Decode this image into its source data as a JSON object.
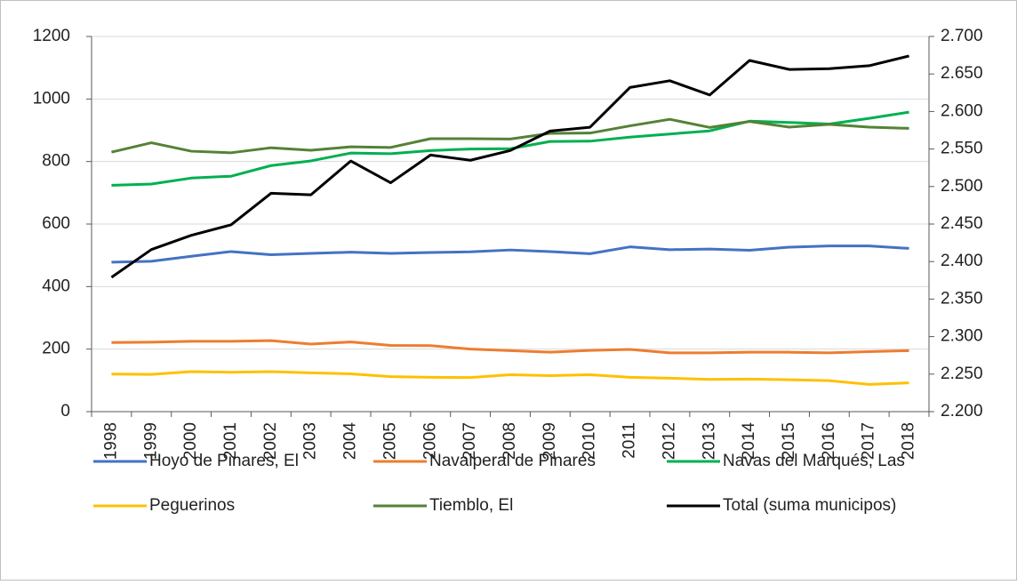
{
  "chart_data": {
    "type": "line",
    "categories": [
      "1998",
      "1999",
      "2000",
      "2001",
      "2002",
      "2003",
      "2004",
      "2005",
      "2006",
      "2007",
      "2008",
      "2009",
      "2010",
      "2011",
      "2012",
      "2013",
      "2014",
      "2015",
      "2016",
      "2017",
      "2018"
    ],
    "series": [
      {
        "name": "Hoyo de Pinares, El",
        "color": "#4472c4",
        "values": [
          478,
          481,
          497,
          512,
          502,
          506,
          510,
          506,
          509,
          511,
          517,
          512,
          505,
          527,
          518,
          520,
          516,
          526,
          530,
          530,
          522
        ]
      },
      {
        "name": "Navalperal de Pinares",
        "color": "#ed7d31",
        "values": [
          221,
          222,
          225,
          225,
          227,
          216,
          223,
          212,
          211,
          200,
          195,
          190,
          196,
          199,
          188,
          188,
          190,
          190,
          188,
          192,
          195
        ]
      },
      {
        "name": "Navas del Marqués, Las",
        "color": "#00b050",
        "values": [
          724,
          728,
          747,
          753,
          787,
          802,
          827,
          825,
          835,
          840,
          841,
          864,
          865,
          878,
          888,
          898,
          929,
          925,
          920,
          938,
          958
        ]
      },
      {
        "name": "Peguerinos",
        "color": "#ffc000",
        "values": [
          120,
          119,
          128,
          126,
          128,
          124,
          121,
          112,
          110,
          109,
          118,
          115,
          118,
          110,
          107,
          103,
          104,
          102,
          99,
          87,
          92
        ]
      },
      {
        "name": "Tiemblo, El",
        "color": "#548235",
        "values": [
          830,
          860,
          833,
          828,
          844,
          836,
          847,
          845,
          873,
          873,
          872,
          890,
          891,
          914,
          935,
          909,
          928,
          910,
          919,
          910,
          906
        ]
      },
      {
        "name": "Total (suma municipos)",
        "color": "#000000",
        "axis": "y2",
        "values": [
          2.379,
          2.416,
          2.435,
          2.449,
          2.491,
          2.489,
          2.534,
          2.505,
          2.542,
          2.535,
          2.548,
          2.574,
          2.579,
          2.632,
          2.641,
          2.622,
          2.668,
          2.656,
          2.657,
          2.661,
          2.674
        ]
      }
    ],
    "ylim": [
      0,
      1200
    ],
    "yticks": [
      0,
      200,
      400,
      600,
      800,
      1000,
      1200
    ],
    "y2lim": [
      2.2,
      2.7
    ],
    "y2ticks": [
      {
        "value": 2.2,
        "label": "2.200"
      },
      {
        "value": 2.25,
        "label": "2.250"
      },
      {
        "value": 2.3,
        "label": "2.300"
      },
      {
        "value": 2.35,
        "label": "2.350"
      },
      {
        "value": 2.4,
        "label": "2.400"
      },
      {
        "value": 2.45,
        "label": "2.450"
      },
      {
        "value": 2.5,
        "label": "2.500"
      },
      {
        "value": 2.55,
        "label": "2.550"
      },
      {
        "value": 2.6,
        "label": "2.600"
      },
      {
        "value": 2.65,
        "label": "2.650"
      },
      {
        "value": 2.7,
        "label": "2.700"
      }
    ],
    "grid": true,
    "legend": "bottom"
  }
}
